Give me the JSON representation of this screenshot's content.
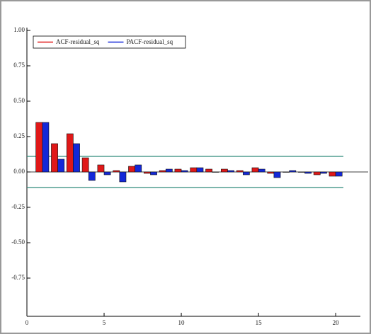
{
  "chart_data": {
    "type": "bar",
    "x": [
      1,
      2,
      3,
      4,
      5,
      6,
      7,
      8,
      9,
      10,
      11,
      12,
      13,
      14,
      15,
      16,
      17,
      18,
      19,
      20
    ],
    "series": [
      {
        "name": "ACF-residual_sq",
        "color": "#e01818",
        "values": [
          0.35,
          0.2,
          0.27,
          0.1,
          0.05,
          0.01,
          0.04,
          -0.01,
          0.01,
          0.02,
          0.03,
          0.02,
          0.02,
          0.01,
          0.03,
          -0.01,
          0.0,
          0.0,
          -0.02,
          -0.03
        ]
      },
      {
        "name": "PACF-residual_sq",
        "color": "#1428d8",
        "values": [
          0.35,
          0.09,
          0.2,
          -0.06,
          -0.02,
          -0.07,
          0.05,
          -0.02,
          0.02,
          0.01,
          0.03,
          0.0,
          0.01,
          -0.02,
          0.02,
          -0.04,
          0.01,
          -0.01,
          -0.01,
          -0.03
        ]
      }
    ],
    "bands": [
      0.11,
      -0.11
    ],
    "band_color": "#2e8b7a",
    "xlim": [
      0,
      21.6
    ],
    "xticks": [
      0,
      5,
      10,
      15,
      20
    ],
    "ylim": [
      -1,
      1
    ],
    "yticks": [
      {
        "value": 1,
        "label": "1.00"
      },
      0.75,
      {
        "value": 0.5,
        "label": "0.50"
      },
      0.25,
      {
        "value": 0,
        "label": "0.00"
      },
      -0.25,
      {
        "value": -0.5,
        "label": "-0.50"
      },
      -0.75
    ],
    "legend": "top-left"
  }
}
